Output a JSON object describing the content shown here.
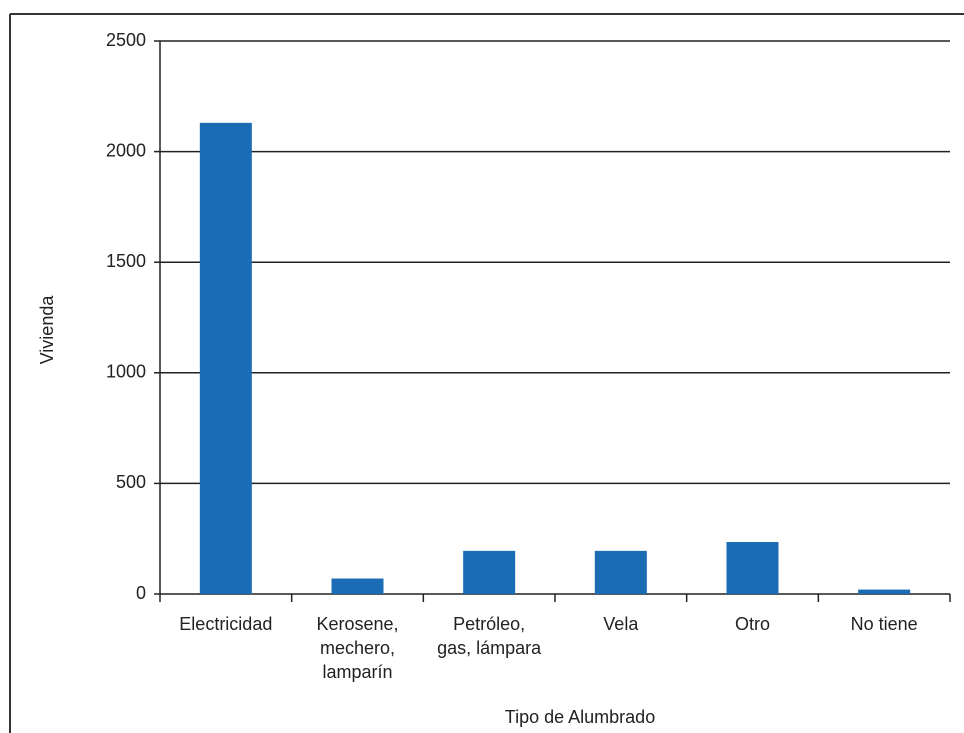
{
  "chart_data": {
    "type": "bar",
    "x_label": "Tipo de Alumbrado",
    "y_label": "Vivienda",
    "categories": [
      "Electricidad",
      "Kerosene,\nmechero,\nlamparín",
      "Petróleo,\ngas, lámpara",
      "Vela",
      "Otro",
      "No tiene"
    ],
    "values": [
      2130,
      70,
      195,
      195,
      235,
      20
    ],
    "color": "#1a6db5",
    "ylim": [
      0,
      2500
    ],
    "yticks": [
      0,
      500,
      1000,
      1500,
      2000,
      2500
    ],
    "grid": true
  }
}
